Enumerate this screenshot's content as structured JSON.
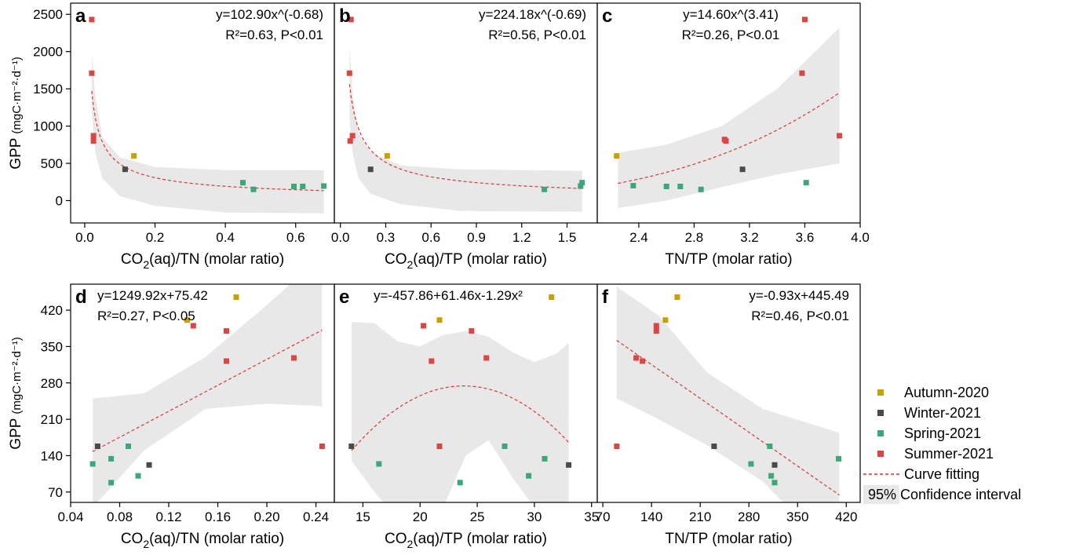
{
  "series_styles": [
    {
      "name": "Autumn-2020",
      "color": "#c9a000"
    },
    {
      "name": "Winter-2021",
      "color": "#4a4a4a"
    },
    {
      "name": "Spring-2021",
      "color": "#3aa878"
    },
    {
      "name": "Summer-2021",
      "color": "#dd4444"
    }
  ],
  "legend": {
    "entries": [
      "Autumn-2020",
      "Winter-2021",
      "Spring-2021",
      "Summer-2021"
    ],
    "fit_label": "Curve fitting",
    "ci_label": "95% Confidence interval",
    "fit_color": "#dd3333",
    "ci_color": "#e8e8e8",
    "placement": "right"
  },
  "chart_data": [
    {
      "panel": "a",
      "type": "scatter",
      "equation": "y=102.90x^(-0.68)",
      "stats": "R²=0.63, P<0.01",
      "ylabel_main": "GPP",
      "ylabel_unit": "(mgC·m⁻²·d⁻¹)",
      "xlabel_pre": "CO",
      "xlabel_sub": "2",
      "xlabel_post": "(aq)/TN (molar ratio)",
      "xlim": [
        -0.04,
        0.71
      ],
      "ylim": [
        -300,
        2650
      ],
      "xticks": [
        "0.0",
        "0.2",
        "0.4",
        "0.6"
      ],
      "xtick_values": [
        0.0,
        0.2,
        0.4,
        0.6
      ],
      "yticks": [
        "0",
        "500",
        "1000",
        "1500",
        "2000",
        "2500"
      ],
      "ytick_values": [
        0,
        500,
        1000,
        1500,
        2000,
        2500
      ],
      "fit": {
        "model": "power",
        "a": 102.9,
        "b": -0.68,
        "x_range": [
          0.02,
          0.68
        ]
      },
      "ci_band": {
        "x": [
          0.02,
          0.03,
          0.05,
          0.1,
          0.2,
          0.4,
          0.68
        ],
        "lower": [
          1200,
          650,
          300,
          60,
          -70,
          -160,
          -170
        ],
        "upper": [
          2000,
          1400,
          850,
          580,
          450,
          410,
          410
        ]
      },
      "points": [
        {
          "series": "Summer-2021",
          "x": 0.02,
          "y": 2430
        },
        {
          "series": "Summer-2021",
          "x": 0.02,
          "y": 1710
        },
        {
          "series": "Summer-2021",
          "x": 0.025,
          "y": 870
        },
        {
          "series": "Summer-2021",
          "x": 0.025,
          "y": 800
        },
        {
          "series": "Autumn-2020",
          "x": 0.14,
          "y": 600
        },
        {
          "series": "Winter-2021",
          "x": 0.115,
          "y": 420
        },
        {
          "series": "Spring-2021",
          "x": 0.45,
          "y": 240
        },
        {
          "series": "Spring-2021",
          "x": 0.48,
          "y": 150
        },
        {
          "series": "Spring-2021",
          "x": 0.595,
          "y": 190
        },
        {
          "series": "Spring-2021",
          "x": 0.62,
          "y": 190
        },
        {
          "series": "Spring-2021",
          "x": 0.68,
          "y": 195
        }
      ]
    },
    {
      "panel": "b",
      "type": "scatter",
      "equation": "y=224.18x^(-0.69)",
      "stats": "R²=0.56, P<0.01",
      "xlabel_pre": "CO",
      "xlabel_sub": "2",
      "xlabel_post": "(aq)/TP (molar ratio)",
      "xlim": [
        -0.04,
        1.7
      ],
      "ylim": [
        -300,
        2650
      ],
      "xticks": [
        "0.0",
        "0.3",
        "0.6",
        "0.9",
        "1.2",
        "1.5"
      ],
      "xtick_values": [
        0.0,
        0.3,
        0.6,
        0.9,
        1.2,
        1.5
      ],
      "fit": {
        "model": "power",
        "a": 224.18,
        "b": -0.69,
        "x_range": [
          0.06,
          1.6
        ]
      },
      "ci_band": {
        "x": [
          0.06,
          0.08,
          0.12,
          0.2,
          0.4,
          0.8,
          1.6
        ],
        "lower": [
          1100,
          650,
          300,
          90,
          -50,
          -140,
          -150
        ],
        "upper": [
          2050,
          1450,
          900,
          650,
          470,
          420,
          400
        ]
      },
      "points": [
        {
          "series": "Summer-2021",
          "x": 0.07,
          "y": 2430
        },
        {
          "series": "Summer-2021",
          "x": 0.06,
          "y": 1710
        },
        {
          "series": "Summer-2021",
          "x": 0.08,
          "y": 870
        },
        {
          "series": "Summer-2021",
          "x": 0.065,
          "y": 800
        },
        {
          "series": "Autumn-2020",
          "x": 0.31,
          "y": 600
        },
        {
          "series": "Winter-2021",
          "x": 0.2,
          "y": 420
        },
        {
          "series": "Spring-2021",
          "x": 1.35,
          "y": 150
        },
        {
          "series": "Spring-2021",
          "x": 1.59,
          "y": 195
        },
        {
          "series": "Spring-2021",
          "x": 1.6,
          "y": 240
        }
      ]
    },
    {
      "panel": "c",
      "type": "scatter",
      "equation": "y=14.60x^(3.41)",
      "stats": "R²=0.26, P<0.01",
      "xlabel_pre": "TN/TP (molar ratio)",
      "xlabel_sub": "",
      "xlabel_post": "",
      "xlim": [
        2.1,
        4.0
      ],
      "ylim": [
        -300,
        2650
      ],
      "xticks": [
        "2.4",
        "2.8",
        "3.2",
        "3.6",
        "4.0"
      ],
      "xtick_values": [
        2.4,
        2.8,
        3.2,
        3.6,
        4.0
      ],
      "fit": {
        "model": "power",
        "a": 14.6,
        "b": 3.41,
        "x_range": [
          2.25,
          3.85
        ]
      },
      "ci_band": {
        "x": [
          2.25,
          2.6,
          3.0,
          3.4,
          3.85
        ],
        "lower": [
          -100,
          0,
          180,
          350,
          500
        ],
        "upper": [
          640,
          750,
          1000,
          1500,
          2320
        ]
      },
      "points": [
        {
          "series": "Summer-2021",
          "x": 3.6,
          "y": 2430
        },
        {
          "series": "Summer-2021",
          "x": 3.58,
          "y": 1710
        },
        {
          "series": "Summer-2021",
          "x": 3.02,
          "y": 820
        },
        {
          "series": "Summer-2021",
          "x": 3.03,
          "y": 800
        },
        {
          "series": "Summer-2021",
          "x": 3.85,
          "y": 870
        },
        {
          "series": "Autumn-2020",
          "x": 2.24,
          "y": 600
        },
        {
          "series": "Winter-2021",
          "x": 3.15,
          "y": 420
        },
        {
          "series": "Spring-2021",
          "x": 2.36,
          "y": 200
        },
        {
          "series": "Spring-2021",
          "x": 2.6,
          "y": 190
        },
        {
          "series": "Spring-2021",
          "x": 2.7,
          "y": 190
        },
        {
          "series": "Spring-2021",
          "x": 2.85,
          "y": 150
        },
        {
          "series": "Spring-2021",
          "x": 3.61,
          "y": 240
        }
      ]
    },
    {
      "panel": "d",
      "type": "scatter",
      "equation": "y=1249.92x+75.42",
      "stats": "R²=0.27, P<0.05",
      "ylabel_main": "GPP",
      "ylabel_unit": "(mgC·m⁻²·d⁻¹)",
      "xlabel_pre": "CO",
      "xlabel_sub": "2",
      "xlabel_post": "(aq)/TN (molar ratio)",
      "xlim": [
        0.04,
        0.255
      ],
      "ylim": [
        50,
        470
      ],
      "xticks": [
        "0.04",
        "0.08",
        "0.12",
        "0.16",
        "0.20",
        "0.24"
      ],
      "xtick_values": [
        0.04,
        0.08,
        0.12,
        0.16,
        0.2,
        0.24
      ],
      "yticks": [
        "70",
        "140",
        "210",
        "280",
        "350",
        "420"
      ],
      "ytick_values": [
        70,
        140,
        210,
        280,
        350,
        420
      ],
      "fit": {
        "model": "linear",
        "a": 1249.92,
        "b": 75.42,
        "x_range": [
          0.058,
          0.245
        ]
      },
      "ci_band": {
        "x": [
          0.058,
          0.1,
          0.15,
          0.2,
          0.245
        ],
        "lower": [
          40,
          150,
          230,
          240,
          235
        ],
        "upper": [
          250,
          260,
          330,
          430,
          525
        ]
      },
      "points": [
        {
          "series": "Autumn-2020",
          "x": 0.175,
          "y": 445
        },
        {
          "series": "Autumn-2020",
          "x": 0.135,
          "y": 401
        },
        {
          "series": "Summer-2021",
          "x": 0.14,
          "y": 390
        },
        {
          "series": "Summer-2021",
          "x": 0.167,
          "y": 380
        },
        {
          "series": "Summer-2021",
          "x": 0.167,
          "y": 322
        },
        {
          "series": "Summer-2021",
          "x": 0.222,
          "y": 328
        },
        {
          "series": "Summer-2021",
          "x": 0.245,
          "y": 158
        },
        {
          "series": "Winter-2021",
          "x": 0.062,
          "y": 158
        },
        {
          "series": "Winter-2021",
          "x": 0.104,
          "y": 122
        },
        {
          "series": "Spring-2021",
          "x": 0.058,
          "y": 124
        },
        {
          "series": "Spring-2021",
          "x": 0.073,
          "y": 134
        },
        {
          "series": "Spring-2021",
          "x": 0.087,
          "y": 158
        },
        {
          "series": "Spring-2021",
          "x": 0.073,
          "y": 88
        },
        {
          "series": "Spring-2021",
          "x": 0.095,
          "y": 101
        }
      ]
    },
    {
      "panel": "e",
      "type": "scatter",
      "equation": "y=-457.86+61.46x-1.29x²",
      "stats": "",
      "xlabel_pre": "CO",
      "xlabel_sub": "2",
      "xlabel_post": "(aq)/TP (molar ratio)",
      "xlim": [
        12.5,
        35.5
      ],
      "ylim": [
        50,
        470
      ],
      "xticks": [
        "15",
        "20",
        "25",
        "30",
        "35"
      ],
      "xtick_values": [
        15,
        20,
        25,
        30,
        35
      ],
      "fit": {
        "model": "quadratic",
        "c0": -457.86,
        "c1": 61.46,
        "c2": -1.29,
        "x_range": [
          14.0,
          33.0
        ]
      },
      "ci_band": {
        "x": [
          14.0,
          16.0,
          18.0,
          20.0,
          22.0,
          24.0,
          26.0,
          28.0,
          30.0,
          32.0,
          33.0
        ],
        "lower": [
          130,
          70,
          20,
          0,
          40,
          140,
          170,
          100,
          40,
          -10,
          -30
        ],
        "upper": [
          397,
          395,
          360,
          350,
          372,
          380,
          369,
          340,
          320,
          337,
          357
        ]
      },
      "points": [
        {
          "series": "Autumn-2020",
          "x": 31.5,
          "y": 445
        },
        {
          "series": "Autumn-2020",
          "x": 21.7,
          "y": 401
        },
        {
          "series": "Summer-2021",
          "x": 20.3,
          "y": 390
        },
        {
          "series": "Summer-2021",
          "x": 24.5,
          "y": 380
        },
        {
          "series": "Summer-2021",
          "x": 21.0,
          "y": 322
        },
        {
          "series": "Summer-2021",
          "x": 25.8,
          "y": 328
        },
        {
          "series": "Summer-2021",
          "x": 21.7,
          "y": 158
        },
        {
          "series": "Winter-2021",
          "x": 14.0,
          "y": 158
        },
        {
          "series": "Winter-2021",
          "x": 33.0,
          "y": 122
        },
        {
          "series": "Spring-2021",
          "x": 16.4,
          "y": 124
        },
        {
          "series": "Spring-2021",
          "x": 27.4,
          "y": 158
        },
        {
          "series": "Spring-2021",
          "x": 30.9,
          "y": 134
        },
        {
          "series": "Spring-2021",
          "x": 23.5,
          "y": 88
        },
        {
          "series": "Spring-2021",
          "x": 29.5,
          "y": 101
        }
      ]
    },
    {
      "panel": "f",
      "type": "scatter",
      "equation": "y=-0.93x+445.49",
      "stats": "R²=0.46, P<0.01",
      "xlabel_pre": "TN/TP (molar ratio)",
      "xlabel_sub": "",
      "xlabel_post": "",
      "xlim": [
        62,
        440
      ],
      "ylim": [
        50,
        470
      ],
      "xticks": [
        "70",
        "140",
        "210",
        "280",
        "350",
        "420"
      ],
      "xtick_values": [
        70,
        140,
        210,
        280,
        350,
        420
      ],
      "fit": {
        "model": "linear",
        "a": -0.93,
        "b": 445.49,
        "x_range": [
          90,
          410
        ]
      },
      "ci_band": {
        "x": [
          90,
          150,
          220,
          300,
          410
        ],
        "lower": [
          250,
          210,
          160,
          90,
          -60
        ],
        "upper": [
          465,
          410,
          300,
          230,
          184
        ]
      },
      "points": [
        {
          "series": "Autumn-2020",
          "x": 177,
          "y": 445
        },
        {
          "series": "Autumn-2020",
          "x": 160,
          "y": 401
        },
        {
          "series": "Summer-2021",
          "x": 147,
          "y": 390
        },
        {
          "series": "Summer-2021",
          "x": 147,
          "y": 380
        },
        {
          "series": "Summer-2021",
          "x": 118,
          "y": 328
        },
        {
          "series": "Summer-2021",
          "x": 127,
          "y": 322
        },
        {
          "series": "Summer-2021",
          "x": 90,
          "y": 158
        },
        {
          "series": "Winter-2021",
          "x": 230,
          "y": 158
        },
        {
          "series": "Winter-2021",
          "x": 317,
          "y": 122
        },
        {
          "series": "Spring-2021",
          "x": 283,
          "y": 124
        },
        {
          "series": "Spring-2021",
          "x": 310,
          "y": 158
        },
        {
          "series": "Spring-2021",
          "x": 409,
          "y": 134
        },
        {
          "series": "Spring-2021",
          "x": 312,
          "y": 101
        },
        {
          "series": "Spring-2021",
          "x": 317,
          "y": 88
        }
      ]
    }
  ]
}
